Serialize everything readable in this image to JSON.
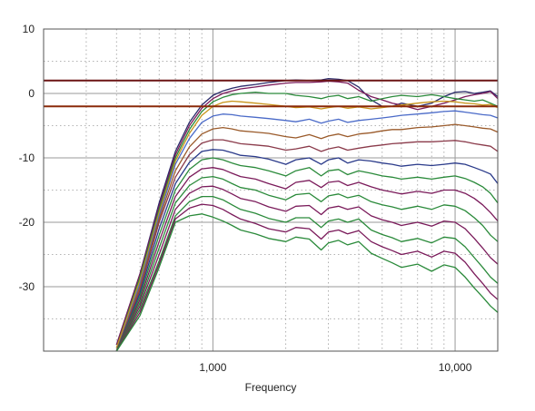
{
  "chart_data": {
    "type": "line",
    "title": "",
    "xlabel": "Frequency",
    "ylabel": "",
    "x_scale": "log",
    "xlim": [
      200,
      15000
    ],
    "ylim": [
      -40,
      10
    ],
    "x_ticks": [
      {
        "value": 1000,
        "label": "1,000"
      },
      {
        "value": 10000,
        "label": "10,000"
      }
    ],
    "y_ticks": [
      {
        "value": 10,
        "label": "10"
      },
      {
        "value": 0,
        "label": "0"
      },
      {
        "value": -10,
        "label": "-10"
      },
      {
        "value": -20,
        "label": "-20"
      },
      {
        "value": -30,
        "label": "-30"
      }
    ],
    "grid": true,
    "legend": "none",
    "limit_lines": [
      {
        "y": 2,
        "color": "#6b1414"
      },
      {
        "y": -2,
        "color": "#8b2a0a"
      }
    ],
    "x": [
      400,
      500,
      600,
      700,
      800,
      900,
      1000,
      1100,
      1200,
      1300,
      1500,
      1700,
      2000,
      2200,
      2500,
      2800,
      3000,
      3300,
      3600,
      4000,
      4500,
      5000,
      5500,
      6000,
      7000,
      8000,
      9000,
      10000,
      11000,
      12000,
      13000,
      14000,
      15000
    ],
    "series": [
      {
        "color": "#2a2a6a",
        "values": [
          -39,
          -28,
          -17,
          -9,
          -4.5,
          -1.8,
          -0.3,
          0.4,
          0.8,
          1.1,
          1.4,
          1.7,
          2.0,
          2.1,
          2.0,
          2.1,
          2.3,
          2.2,
          2.0,
          1.0,
          -1.0,
          -2.0,
          -2.0,
          -1.5,
          -2.0,
          -1.5,
          -0.5,
          0.2,
          0.3,
          0.0,
          0.2,
          0.4,
          -0.5
        ]
      },
      {
        "color": "#7a1a5a",
        "values": [
          -39,
          -28,
          -17.5,
          -9.5,
          -5,
          -2.3,
          -0.8,
          0.0,
          0.4,
          0.7,
          1.0,
          1.3,
          1.6,
          1.7,
          1.7,
          1.8,
          1.9,
          1.8,
          1.6,
          0.5,
          -0.5,
          -1.0,
          -1.5,
          -1.8,
          -2.5,
          -2.0,
          -1.5,
          -1.0,
          -0.5,
          -0.2,
          0.0,
          0.3,
          -0.8
        ]
      },
      {
        "color": "#2a8a3a",
        "values": [
          -39.5,
          -28.5,
          -18,
          -10,
          -5.6,
          -2.8,
          -1.3,
          -0.6,
          -0.2,
          0.0,
          0.2,
          0.0,
          0.0,
          -0.3,
          -0.5,
          -0.8,
          -0.5,
          -0.3,
          -0.8,
          -0.5,
          -1.2,
          -0.8,
          -0.5,
          -0.3,
          -0.5,
          -0.2,
          -0.5,
          -0.8,
          -1.0,
          -1.2,
          -1.0,
          -1.5,
          -2.0
        ]
      },
      {
        "color": "#c8941a",
        "values": [
          -39.5,
          -29,
          -18.5,
          -10.5,
          -6.2,
          -3.4,
          -2.0,
          -1.4,
          -1.2,
          -1.3,
          -1.5,
          -1.7,
          -2.0,
          -2.2,
          -2.1,
          -2.4,
          -2.2,
          -2.0,
          -2.3,
          -2.1,
          -2.4,
          -2.2,
          -2.0,
          -1.8,
          -1.5,
          -1.3,
          -1.2,
          -1.3,
          -1.5,
          -1.6,
          -1.8,
          -1.7,
          -2.2
        ]
      },
      {
        "color": "#4a6ac8",
        "values": [
          -40,
          -29.5,
          -19,
          -11,
          -7,
          -4.5,
          -3.5,
          -3.2,
          -3.3,
          -3.5,
          -3.7,
          -3.9,
          -4.2,
          -4.4,
          -4.0,
          -4.6,
          -4.3,
          -4.0,
          -4.5,
          -4.2,
          -4.0,
          -3.8,
          -3.6,
          -3.4,
          -3.2,
          -3.0,
          -2.8,
          -2.7,
          -2.9,
          -3.1,
          -3.3,
          -3.4,
          -3.8
        ]
      },
      {
        "color": "#9a5a2a",
        "values": [
          -40,
          -30,
          -19.5,
          -12,
          -8.3,
          -6.3,
          -5.5,
          -5.3,
          -5.5,
          -5.8,
          -6.0,
          -6.2,
          -6.7,
          -6.9,
          -6.4,
          -7.0,
          -6.6,
          -6.3,
          -6.7,
          -6.3,
          -6.1,
          -5.8,
          -5.6,
          -5.6,
          -5.3,
          -5.2,
          -5.0,
          -4.8,
          -5.0,
          -5.2,
          -5.4,
          -5.5,
          -6.0
        ]
      },
      {
        "color": "#8a3a4a",
        "values": [
          -40,
          -30.5,
          -20,
          -13,
          -9.5,
          -7.7,
          -7.2,
          -7.2,
          -7.5,
          -7.8,
          -8.0,
          -8.2,
          -8.8,
          -8.6,
          -8.2,
          -9.0,
          -8.6,
          -8.3,
          -8.8,
          -8.5,
          -8.2,
          -8.0,
          -7.8,
          -7.7,
          -7.5,
          -7.5,
          -7.4,
          -7.3,
          -7.5,
          -7.8,
          -8.0,
          -8.2,
          -9.0
        ]
      },
      {
        "color": "#2a3a8a",
        "values": [
          -40,
          -31,
          -21,
          -14,
          -10.7,
          -9.0,
          -8.7,
          -8.8,
          -9.2,
          -9.6,
          -9.8,
          -10.2,
          -11.0,
          -10.3,
          -10.0,
          -11.0,
          -10.3,
          -10.0,
          -10.8,
          -10.3,
          -10.5,
          -10.8,
          -11.0,
          -11.3,
          -11.0,
          -11.2,
          -11.0,
          -10.8,
          -11.0,
          -11.5,
          -12.0,
          -12.5,
          -14.0
        ]
      },
      {
        "color": "#2a8a3a",
        "values": [
          -40,
          -31.5,
          -22,
          -15,
          -11.8,
          -10.3,
          -10.0,
          -10.3,
          -10.8,
          -11.2,
          -11.5,
          -12.0,
          -12.8,
          -12.0,
          -11.5,
          -12.8,
          -12.0,
          -11.8,
          -12.6,
          -12.0,
          -12.4,
          -12.8,
          -13.0,
          -13.3,
          -13.0,
          -13.3,
          -13.0,
          -12.8,
          -13.2,
          -13.8,
          -14.5,
          -15.5,
          -17.0
        ]
      },
      {
        "color": "#7a1a5a",
        "values": [
          -40,
          -32,
          -23,
          -16,
          -13,
          -11.7,
          -11.5,
          -11.8,
          -12.4,
          -12.9,
          -13.3,
          -14.0,
          -14.8,
          -13.8,
          -13.5,
          -14.6,
          -13.8,
          -13.6,
          -14.3,
          -13.8,
          -14.5,
          -15.0,
          -15.3,
          -15.6,
          -15.2,
          -15.5,
          -15.0,
          -15.0,
          -15.5,
          -16.3,
          -17.3,
          -18.5,
          -19.8
        ]
      },
      {
        "color": "#2a8a3a",
        "values": [
          -40,
          -32.5,
          -24,
          -17,
          -14.3,
          -13.1,
          -12.9,
          -13.3,
          -14.0,
          -14.6,
          -15.0,
          -15.8,
          -16.5,
          -15.7,
          -15.5,
          -16.8,
          -15.9,
          -15.6,
          -16.2,
          -15.8,
          -16.8,
          -17.3,
          -17.6,
          -18.0,
          -17.5,
          -18.0,
          -17.3,
          -17.5,
          -18.2,
          -19.3,
          -20.5,
          -22.0,
          -23.0
        ]
      },
      {
        "color": "#7a1a5a",
        "values": [
          -40,
          -33,
          -25,
          -18,
          -15.5,
          -14.5,
          -14.4,
          -14.9,
          -15.6,
          -16.3,
          -16.8,
          -17.6,
          -18.3,
          -17.5,
          -17.4,
          -18.8,
          -17.8,
          -17.5,
          -18.0,
          -17.6,
          -19.0,
          -19.6,
          -20.0,
          -20.5,
          -20.0,
          -20.6,
          -19.8,
          -20.0,
          -21.0,
          -22.5,
          -24.0,
          -25.5,
          -26.5
        ]
      },
      {
        "color": "#2a8a3a",
        "values": [
          -40,
          -33.5,
          -26,
          -19,
          -16.8,
          -16.0,
          -16.0,
          -16.5,
          -17.3,
          -18.0,
          -18.6,
          -19.4,
          -20.0,
          -19.3,
          -19.3,
          -20.8,
          -19.8,
          -19.5,
          -20.0,
          -19.5,
          -21.2,
          -21.9,
          -22.4,
          -23.0,
          -22.5,
          -23.2,
          -22.3,
          -22.5,
          -23.8,
          -25.5,
          -27.0,
          -28.5,
          -29.5
        ]
      },
      {
        "color": "#7a1a5a",
        "values": [
          -40,
          -34,
          -26.5,
          -19.5,
          -17.8,
          -17.2,
          -17.4,
          -18.0,
          -18.8,
          -19.5,
          -20.2,
          -21.0,
          -21.5,
          -20.8,
          -21.0,
          -22.6,
          -21.5,
          -21.2,
          -21.8,
          -21.3,
          -23.0,
          -23.8,
          -24.4,
          -25.0,
          -24.5,
          -25.4,
          -24.5,
          -24.8,
          -26.2,
          -28.0,
          -29.5,
          -31.0,
          -32.0
        ]
      },
      {
        "color": "#2a8a3a",
        "values": [
          -40,
          -34.5,
          -27,
          -20,
          -19.0,
          -18.7,
          -19.2,
          -19.8,
          -20.5,
          -21.2,
          -21.8,
          -22.5,
          -23.0,
          -22.3,
          -22.6,
          -24.3,
          -23.2,
          -22.8,
          -23.5,
          -23.0,
          -24.8,
          -25.6,
          -26.3,
          -27.0,
          -26.5,
          -27.6,
          -26.6,
          -27.0,
          -28.5,
          -30.2,
          -31.6,
          -33.0,
          -34.0
        ]
      }
    ]
  }
}
